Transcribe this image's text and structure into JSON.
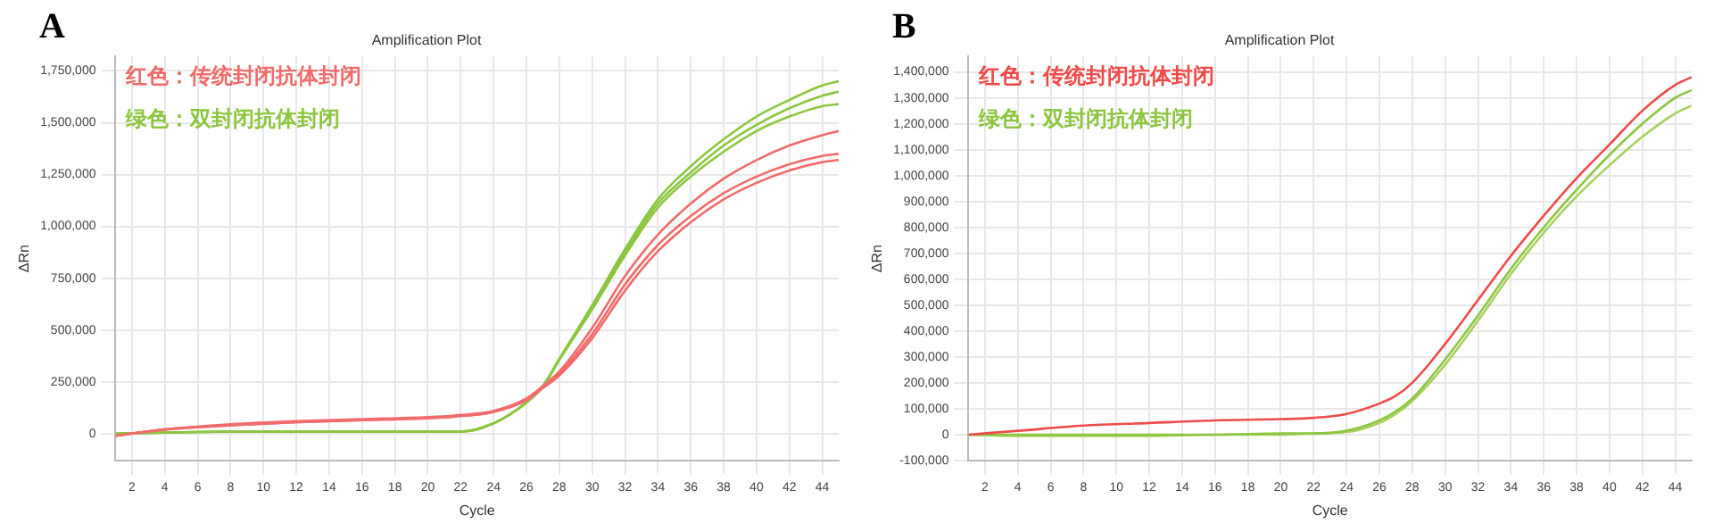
{
  "chart_data": [
    {
      "type": "line",
      "title": "Amplification Plot",
      "xlabel": "Cycle",
      "ylabel": "ΔRn",
      "annotations": [
        "A"
      ],
      "legend": "top left",
      "grid": true,
      "marker": "none",
      "line_style": "solid",
      "x": [
        1,
        4,
        8,
        12,
        16,
        20,
        22,
        24,
        26,
        27,
        28,
        30,
        32,
        34,
        36,
        38,
        40,
        42,
        44,
        45
      ],
      "xlim": [
        1,
        45
      ],
      "xticks": [
        2,
        4,
        6,
        8,
        10,
        12,
        14,
        16,
        18,
        20,
        22,
        24,
        26,
        28,
        30,
        32,
        34,
        36,
        38,
        40,
        42,
        44
      ],
      "ylim": [
        -130000,
        1820000
      ],
      "yticks": [
        0,
        {
          "value": 250000,
          "label": "250,000"
        },
        {
          "value": 500000,
          "label": "500,000"
        },
        {
          "value": 750000,
          "label": "750,000"
        },
        {
          "value": 1000000,
          "label": "1,000,000"
        },
        {
          "value": 1250000,
          "label": "1,250,000"
        },
        {
          "value": 1500000,
          "label": "1,500,000"
        },
        {
          "value": 1750000,
          "label": "1,750,000"
        }
      ],
      "series": [
        {
          "name": "红色：传统封闭抗体封闭",
          "color": "#f26b6b",
          "values": [
            -10000,
            20000,
            45000,
            60000,
            70000,
            80000,
            90000,
            110000,
            170000,
            230000,
            300000,
            510000,
            760000,
            960000,
            1110000,
            1230000,
            1320000,
            1390000,
            1440000,
            1460000
          ]
        },
        {
          "color": "#f26b6b",
          "values": [
            -10000,
            20000,
            40000,
            55000,
            65000,
            75000,
            85000,
            105000,
            165000,
            225000,
            290000,
            480000,
            720000,
            910000,
            1050000,
            1160000,
            1240000,
            1300000,
            1340000,
            1350000
          ]
        },
        {
          "color": "#f26b6b",
          "values": [
            -10000,
            20000,
            40000,
            55000,
            65000,
            75000,
            85000,
            105000,
            160000,
            220000,
            280000,
            460000,
            690000,
            880000,
            1020000,
            1130000,
            1210000,
            1270000,
            1310000,
            1320000
          ]
        },
        {
          "name": "绿色：双封闭抗体封闭",
          "color": "#8cc63f",
          "values": [
            0,
            5000,
            10000,
            10000,
            10000,
            10000,
            10000,
            50000,
            150000,
            230000,
            360000,
            620000,
            890000,
            1130000,
            1290000,
            1420000,
            1530000,
            1610000,
            1680000,
            1700000
          ]
        },
        {
          "color": "#8cc63f",
          "values": [
            0,
            5000,
            10000,
            10000,
            10000,
            10000,
            10000,
            50000,
            150000,
            230000,
            360000,
            610000,
            875000,
            1110000,
            1260000,
            1390000,
            1490000,
            1570000,
            1630000,
            1650000
          ]
        },
        {
          "color": "#8cc63f",
          "values": [
            0,
            5000,
            10000,
            10000,
            10000,
            10000,
            10000,
            50000,
            150000,
            225000,
            355000,
            600000,
            860000,
            1090000,
            1240000,
            1360000,
            1460000,
            1530000,
            1580000,
            1590000
          ]
        }
      ]
    },
    {
      "type": "line",
      "title": "Amplification Plot",
      "xlabel": "Cycle",
      "ylabel": "ΔRn",
      "annotations": [
        "B"
      ],
      "legend": "top left",
      "grid": true,
      "marker": "none",
      "line_style": "solid",
      "x": [
        1,
        4,
        8,
        12,
        16,
        20,
        22,
        24,
        26,
        27,
        28,
        30,
        32,
        34,
        36,
        38,
        40,
        42,
        44,
        45
      ],
      "xlim": [
        1,
        45
      ],
      "xticks": [
        2,
        4,
        6,
        8,
        10,
        12,
        14,
        16,
        18,
        20,
        22,
        24,
        26,
        28,
        30,
        32,
        34,
        36,
        38,
        40,
        42,
        44
      ],
      "ylim": [
        -100000,
        1460000
      ],
      "yticks": [
        {
          "value": -100000,
          "label": "-100,000"
        },
        0,
        {
          "value": 100000,
          "label": "100,000"
        },
        {
          "value": 200000,
          "label": "200,000"
        },
        {
          "value": 300000,
          "label": "300,000"
        },
        {
          "value": 400000,
          "label": "400,000"
        },
        {
          "value": 500000,
          "label": "500,000"
        },
        {
          "value": 600000,
          "label": "600,000"
        },
        {
          "value": 700000,
          "label": "700,000"
        },
        {
          "value": 800000,
          "label": "800,000"
        },
        {
          "value": 900000,
          "label": "900,000"
        },
        {
          "value": 1000000,
          "label": "1,000,000"
        },
        {
          "value": 1100000,
          "label": "1,100,000"
        },
        {
          "value": 1200000,
          "label": "1,200,000"
        },
        {
          "value": 1300000,
          "label": "1,300,000"
        },
        {
          "value": 1400000,
          "label": "1,400,000"
        }
      ],
      "series": [
        {
          "name": "红色：传统封闭抗体封闭",
          "color": "#f04a4a",
          "values": [
            0,
            15000,
            35000,
            45000,
            55000,
            60000,
            65000,
            80000,
            120000,
            150000,
            200000,
            350000,
            520000,
            690000,
            845000,
            990000,
            1120000,
            1250000,
            1350000,
            1380000
          ]
        },
        {
          "name": "绿色：双封闭抗体封闭",
          "color": "#8cc63f",
          "values": [
            0,
            0,
            0,
            0,
            0,
            5000,
            5000,
            15000,
            55000,
            90000,
            140000,
            290000,
            460000,
            640000,
            800000,
            945000,
            1080000,
            1200000,
            1300000,
            1330000
          ]
        },
        {
          "color": "#a8d060",
          "values": [
            0,
            -5000,
            -5000,
            -5000,
            0,
            0,
            5000,
            10000,
            45000,
            80000,
            130000,
            270000,
            440000,
            620000,
            780000,
            920000,
            1040000,
            1150000,
            1240000,
            1270000
          ]
        }
      ]
    }
  ]
}
